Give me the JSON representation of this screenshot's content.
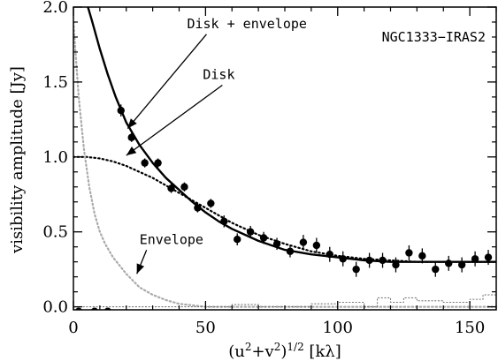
{
  "chart_data": {
    "type": "scatter",
    "title": "NGC1333−IRAS2",
    "xlabel": "(u²+v²)¹ᐟ² [kλ]",
    "xlabel_parts": {
      "base": "(u",
      "sup1": "2",
      "mid": "+v",
      "sup2": "2",
      "close": ")",
      "sup3": "1/2",
      "unit": " [kλ]"
    },
    "ylabel": "visibility amplitude [Jy]",
    "xlim": [
      0,
      160
    ],
    "ylim": [
      -0.02,
      2.0
    ],
    "xticks": [
      0,
      50,
      100,
      150
    ],
    "xtick_labels": [
      "0",
      "50",
      "100",
      "150"
    ],
    "yticks": [
      0.0,
      0.5,
      1.0,
      1.5,
      2.0
    ],
    "ytick_labels": [
      "0.0",
      "0.5",
      "1.0",
      "1.5",
      "2.0"
    ],
    "grid": false,
    "series": [
      {
        "style": "points-with-errorbars",
        "x": [
          2,
          8,
          13,
          18,
          22,
          27,
          32,
          37,
          42,
          47,
          52,
          57,
          62,
          67,
          72,
          77,
          82,
          87,
          92,
          97,
          102,
          107,
          112,
          117,
          122,
          127,
          132,
          137,
          142,
          147,
          152,
          157
        ],
        "y": [
          -0.03,
          -0.03,
          -0.03,
          1.31,
          1.13,
          0.96,
          0.96,
          0.79,
          0.8,
          0.66,
          0.69,
          0.57,
          0.45,
          0.5,
          0.46,
          0.42,
          0.37,
          0.43,
          0.41,
          0.35,
          0.32,
          0.25,
          0.31,
          0.31,
          0.28,
          0.36,
          0.34,
          0.25,
          0.29,
          0.28,
          0.32,
          0.33
        ],
        "err": [
          0,
          0,
          0,
          0.04,
          0.03,
          0.03,
          0.03,
          0.03,
          0.03,
          0.03,
          0.03,
          0.04,
          0.04,
          0.04,
          0.04,
          0.04,
          0.04,
          0.05,
          0.05,
          0.05,
          0.05,
          0.05,
          0.05,
          0.05,
          0.05,
          0.05,
          0.05,
          0.05,
          0.05,
          0.05,
          0.05,
          0.05
        ]
      },
      {
        "name": "Disk + envelope",
        "style": "solid",
        "x": [
          5.5,
          7,
          10,
          13,
          16,
          20,
          25,
          30,
          35,
          40,
          45,
          50,
          55,
          60,
          70,
          80,
          90,
          100,
          110,
          120,
          130,
          140,
          150,
          160
        ],
        "y": [
          2.0,
          1.91,
          1.72,
          1.55,
          1.4,
          1.23,
          1.08,
          0.96,
          0.86,
          0.78,
          0.7,
          0.63,
          0.57,
          0.52,
          0.44,
          0.38,
          0.35,
          0.33,
          0.31,
          0.3,
          0.3,
          0.3,
          0.3,
          0.3
        ]
      },
      {
        "name": "Disk",
        "style": "dotted",
        "x": [
          0,
          5,
          10,
          15,
          20,
          25,
          30,
          35,
          40,
          45,
          50,
          55,
          60,
          70,
          80,
          90,
          100,
          110,
          120,
          130,
          140,
          150,
          160
        ],
        "y": [
          1.0,
          1.0,
          0.99,
          0.97,
          0.94,
          0.9,
          0.86,
          0.81,
          0.76,
          0.71,
          0.66,
          0.61,
          0.56,
          0.48,
          0.42,
          0.37,
          0.34,
          0.32,
          0.31,
          0.3,
          0.3,
          0.3,
          0.3
        ]
      },
      {
        "name": "Envelope",
        "style": "dotted-gray",
        "x": [
          0,
          2,
          4,
          6,
          8,
          10,
          12,
          15,
          20,
          25,
          30,
          35,
          40,
          45,
          50,
          60,
          80,
          160
        ],
        "y": [
          1.9,
          1.4,
          1.05,
          0.8,
          0.62,
          0.5,
          0.42,
          0.33,
          0.22,
          0.13,
          0.08,
          0.045,
          0.02,
          0.01,
          0.0,
          0.0,
          0.0,
          0.0
        ]
      },
      {
        "style": "dotted-step-residual",
        "x": [
          0,
          10,
          20,
          30,
          40,
          50,
          60,
          70,
          80,
          90,
          100,
          110,
          115,
          120,
          125,
          130,
          140,
          150,
          155,
          160
        ],
        "y": [
          0.0,
          0.0,
          0.0,
          0.0,
          0.0,
          0.0,
          0.015,
          0.0,
          0.0,
          0.02,
          0.03,
          0.0,
          0.06,
          0.03,
          0.06,
          0.04,
          0.03,
          0.05,
          0.08,
          0.05
        ]
      }
    ],
    "annotations": [
      {
        "text": "Disk + envelope",
        "x": 43,
        "y": 1.86,
        "arrow_to": [
          20.5,
          1.19
        ]
      },
      {
        "text": "Disk",
        "x": 49,
        "y": 1.52,
        "arrow_to": [
          20,
          1.01
        ]
      },
      {
        "text": "Envelope",
        "x": 25,
        "y": 0.42,
        "arrow_to": [
          24,
          0.22
        ]
      }
    ]
  }
}
